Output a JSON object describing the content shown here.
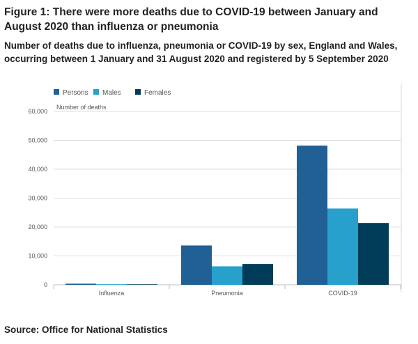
{
  "figure": {
    "title": "Figure 1: There were more deaths due to COVID-19 between January and August 2020 than influenza or pneumonia",
    "subtitle": "Number of deaths due to influenza, pneumonia or COVID-19 by sex, England and Wales, occurring between 1 January and 31 August 2020 and registered by 5 September 2020",
    "source": "Source: Office for National Statistics"
  },
  "chart_data": {
    "type": "bar",
    "categories": [
      "Influenza",
      "Pneumonia",
      "COVID-19"
    ],
    "series": [
      {
        "name": "Persons",
        "color": "#206095",
        "values": [
          394,
          13619,
          48168
        ]
      },
      {
        "name": "Males",
        "color": "#27a0cc",
        "values": [
          210,
          6400,
          26400
        ]
      },
      {
        "name": "Females",
        "color": "#003c57",
        "values": [
          184,
          7200,
          21400
        ]
      }
    ],
    "ylabel": "Number of deaths",
    "ylim": [
      0,
      60000
    ],
    "yticks": [
      "0",
      "10,000",
      "20,000",
      "30,000",
      "40,000",
      "50,000",
      "60,000"
    ],
    "ytick_values": [
      0,
      10000,
      20000,
      30000,
      40000,
      50000,
      60000
    ],
    "grid": true,
    "legend_position": "top-left"
  }
}
